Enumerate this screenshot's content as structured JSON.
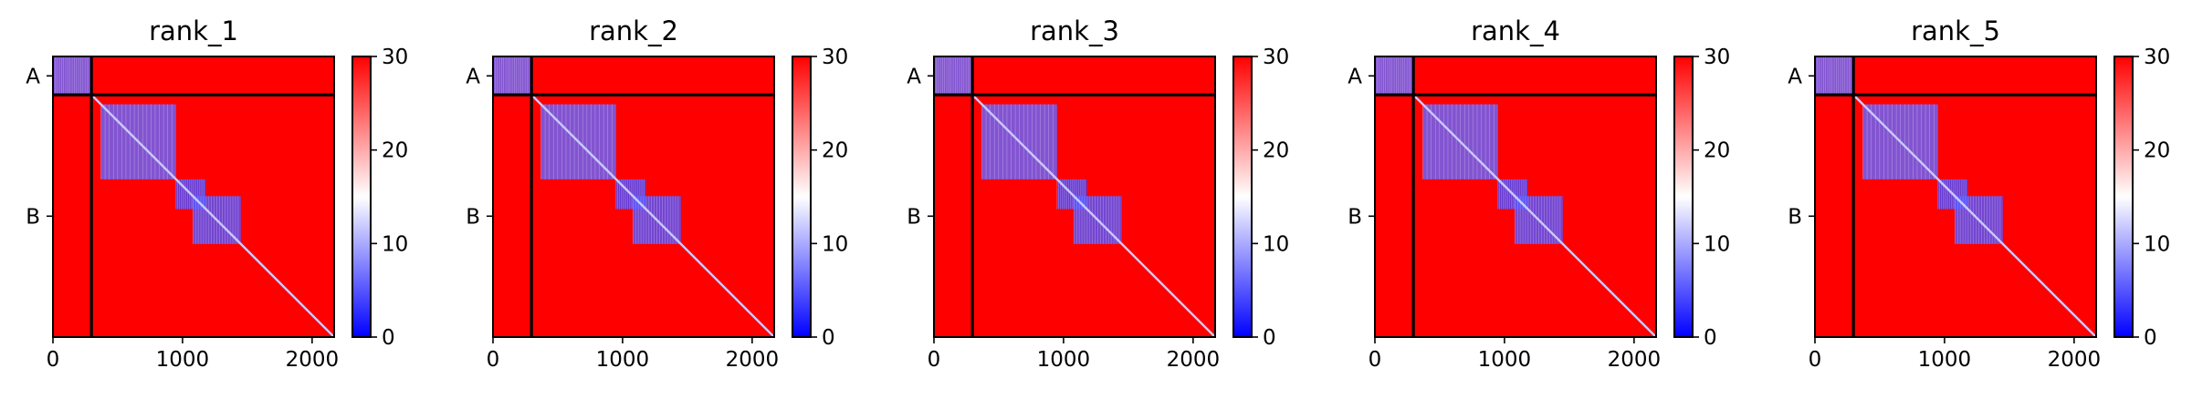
{
  "chart_data": [
    {
      "type": "heatmap",
      "title": "rank_1",
      "x_range": [
        0,
        2170
      ],
      "y_range": [
        0,
        2170
      ],
      "x_ticks": [
        0,
        1000,
        2000
      ],
      "y_tick_labels": [
        {
          "label": "A",
          "value": 150
        },
        {
          "label": "B",
          "value": 1235
        }
      ],
      "chain_boundary": 297,
      "colorbar": {
        "min": 0,
        "max": 30,
        "ticks": [
          0,
          10,
          20,
          30
        ],
        "colormap": "bwr",
        "low": "#0000ff",
        "mid": "#ffffff",
        "high": "#ff0000"
      },
      "low_distance_blocks": [
        {
          "start": 0,
          "end": 297,
          "value": 6
        },
        {
          "start": 370,
          "end": 950,
          "value": 6
        },
        {
          "start": 950,
          "end": 1180,
          "value": 4
        },
        {
          "start": 1080,
          "end": 1450,
          "value": 5
        }
      ]
    },
    {
      "type": "heatmap",
      "title": "rank_2",
      "x_range": [
        0,
        2170
      ],
      "y_range": [
        0,
        2170
      ],
      "x_ticks": [
        0,
        1000,
        2000
      ],
      "y_tick_labels": [
        {
          "label": "A",
          "value": 150
        },
        {
          "label": "B",
          "value": 1235
        }
      ],
      "chain_boundary": 297,
      "colorbar": {
        "min": 0,
        "max": 30,
        "ticks": [
          0,
          10,
          20,
          30
        ],
        "colormap": "bwr",
        "low": "#0000ff",
        "mid": "#ffffff",
        "high": "#ff0000"
      },
      "low_distance_blocks": [
        {
          "start": 0,
          "end": 297,
          "value": 6
        },
        {
          "start": 370,
          "end": 950,
          "value": 6
        },
        {
          "start": 950,
          "end": 1180,
          "value": 4
        },
        {
          "start": 1080,
          "end": 1450,
          "value": 5
        }
      ]
    },
    {
      "type": "heatmap",
      "title": "rank_3",
      "x_range": [
        0,
        2170
      ],
      "y_range": [
        0,
        2170
      ],
      "x_ticks": [
        0,
        1000,
        2000
      ],
      "y_tick_labels": [
        {
          "label": "A",
          "value": 150
        },
        {
          "label": "B",
          "value": 1235
        }
      ],
      "chain_boundary": 297,
      "colorbar": {
        "min": 0,
        "max": 30,
        "ticks": [
          0,
          10,
          20,
          30
        ],
        "colormap": "bwr",
        "low": "#0000ff",
        "mid": "#ffffff",
        "high": "#ff0000"
      },
      "low_distance_blocks": [
        {
          "start": 0,
          "end": 297,
          "value": 6
        },
        {
          "start": 370,
          "end": 950,
          "value": 6
        },
        {
          "start": 950,
          "end": 1180,
          "value": 4
        },
        {
          "start": 1080,
          "end": 1450,
          "value": 5
        }
      ]
    },
    {
      "type": "heatmap",
      "title": "rank_4",
      "x_range": [
        0,
        2170
      ],
      "y_range": [
        0,
        2170
      ],
      "x_ticks": [
        0,
        1000,
        2000
      ],
      "y_tick_labels": [
        {
          "label": "A",
          "value": 150
        },
        {
          "label": "B",
          "value": 1235
        }
      ],
      "chain_boundary": 297,
      "colorbar": {
        "min": 0,
        "max": 30,
        "ticks": [
          0,
          10,
          20,
          30
        ],
        "colormap": "bwr",
        "low": "#0000ff",
        "mid": "#ffffff",
        "high": "#ff0000"
      },
      "low_distance_blocks": [
        {
          "start": 0,
          "end": 297,
          "value": 6
        },
        {
          "start": 370,
          "end": 950,
          "value": 6
        },
        {
          "start": 950,
          "end": 1180,
          "value": 4
        },
        {
          "start": 1080,
          "end": 1450,
          "value": 5
        }
      ]
    },
    {
      "type": "heatmap",
      "title": "rank_5",
      "x_range": [
        0,
        2170
      ],
      "y_range": [
        0,
        2170
      ],
      "x_ticks": [
        0,
        1000,
        2000
      ],
      "y_tick_labels": [
        {
          "label": "A",
          "value": 150
        },
        {
          "label": "B",
          "value": 1235
        }
      ],
      "chain_boundary": 297,
      "colorbar": {
        "min": 0,
        "max": 30,
        "ticks": [
          0,
          10,
          20,
          30
        ],
        "colormap": "bwr",
        "low": "#0000ff",
        "mid": "#ffffff",
        "high": "#ff0000"
      },
      "low_distance_blocks": [
        {
          "start": 0,
          "end": 297,
          "value": 6
        },
        {
          "start": 370,
          "end": 950,
          "value": 6
        },
        {
          "start": 950,
          "end": 1180,
          "value": 4
        },
        {
          "start": 1080,
          "end": 1450,
          "value": 5
        }
      ]
    }
  ]
}
